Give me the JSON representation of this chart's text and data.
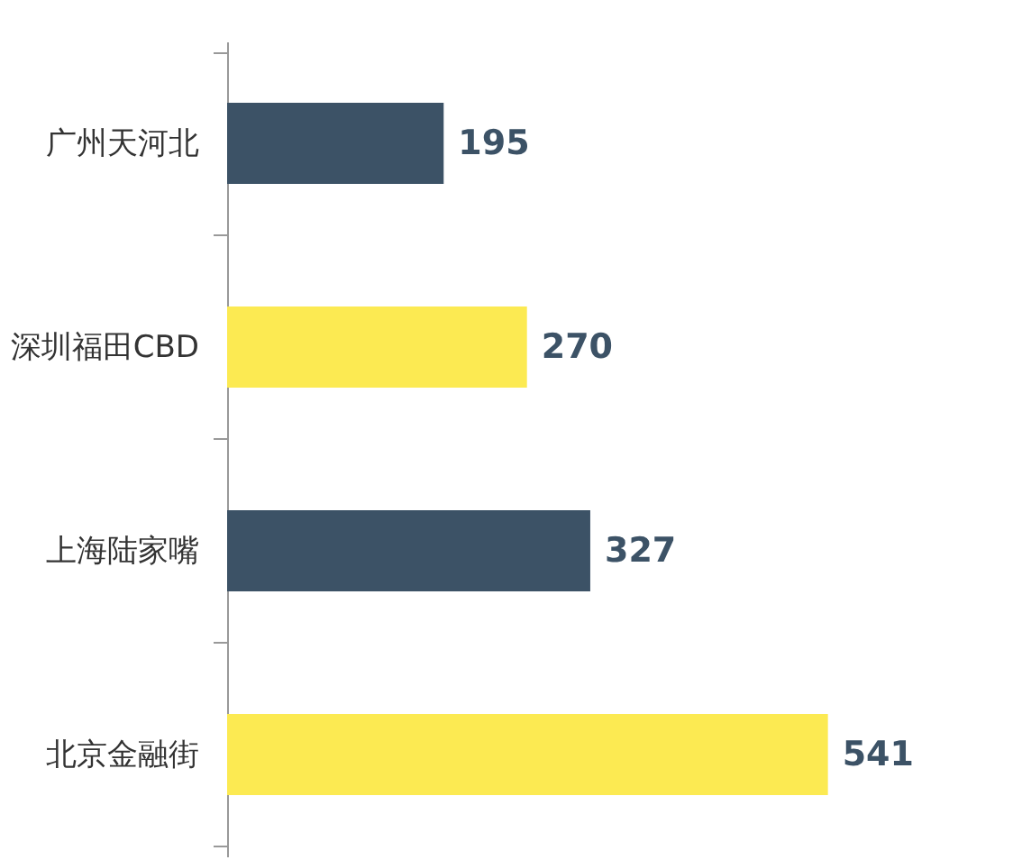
{
  "chart_data": {
    "type": "bar",
    "orientation": "horizontal",
    "data_labels": true,
    "grid": false,
    "categories": [
      "广州天河北",
      "深圳福田CBD",
      "上海陆家嘴",
      "北京金融街"
    ],
    "values": [
      195,
      270,
      327,
      541
    ],
    "colors": [
      "#3c5266",
      "#fcea52",
      "#3c5266",
      "#fcea52"
    ]
  }
}
